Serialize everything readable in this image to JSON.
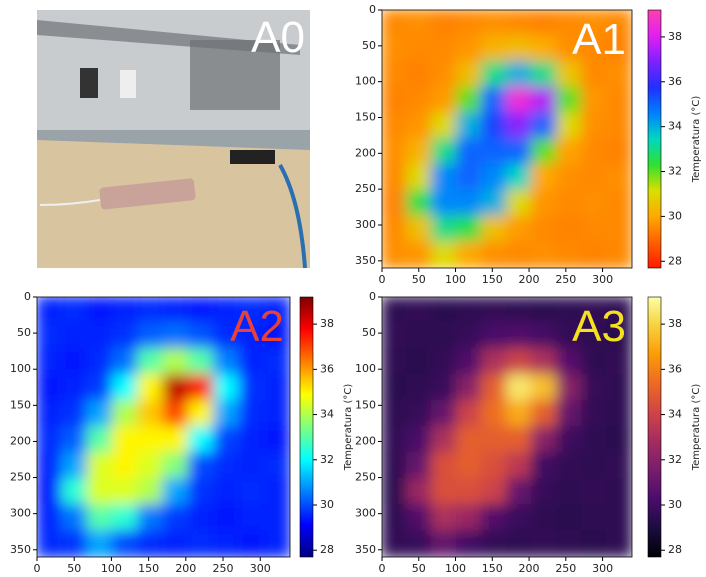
{
  "photo": {
    "label": "A0"
  },
  "chart_data": {
    "type": "heatmap",
    "xlim": [
      0,
      340
    ],
    "ylim": [
      360,
      0
    ],
    "xticks": [
      0,
      50,
      100,
      150,
      200,
      250,
      300
    ],
    "yticks": [
      0,
      50,
      100,
      150,
      200,
      250,
      300,
      350
    ],
    "clim": [
      27.7,
      39.2
    ],
    "cticks": [
      28,
      30,
      32,
      34,
      36,
      38
    ],
    "colorbar_label": "Temperatura (°C)",
    "z": [
      [
        29.5,
        29.6,
        29.4,
        29.5,
        29.6,
        29.5,
        29.4,
        29.5,
        29.6,
        29.5
      ],
      [
        29.6,
        29.5,
        29.5,
        29.7,
        30.2,
        30.4,
        30.1,
        29.6,
        29.5,
        29.4
      ],
      [
        29.5,
        29.4,
        29.6,
        30.4,
        33.0,
        34.0,
        33.0,
        30.6,
        29.5,
        29.6
      ],
      [
        29.4,
        29.5,
        29.8,
        32.0,
        35.0,
        38.5,
        37.5,
        32.0,
        29.7,
        29.5
      ],
      [
        29.5,
        29.7,
        31.0,
        34.0,
        35.5,
        37.0,
        35.0,
        31.0,
        29.6,
        29.5
      ],
      [
        29.6,
        30.2,
        33.0,
        35.0,
        35.0,
        35.0,
        32.0,
        29.9,
        29.5,
        29.4
      ],
      [
        29.5,
        31.0,
        34.5,
        35.0,
        34.5,
        33.5,
        30.0,
        29.6,
        29.5,
        29.6
      ],
      [
        29.4,
        32.5,
        34.5,
        34.5,
        34.0,
        31.0,
        29.7,
        29.5,
        29.6,
        29.5
      ],
      [
        29.5,
        30.5,
        33.0,
        32.5,
        30.5,
        29.8,
        29.5,
        29.4,
        29.5,
        29.5
      ],
      [
        29.6,
        29.7,
        31.0,
        30.0,
        29.6,
        29.5,
        29.6,
        29.5,
        29.4,
        29.5
      ]
    ],
    "panels": [
      {
        "label": "A1",
        "label_color": "#ffffff",
        "colormap": [
          "#ff1a00",
          "#ff6000",
          "#ffa800",
          "#d8e000",
          "#30e030",
          "#00d8c0",
          "#0080ff",
          "#2030ff",
          "#8020ff",
          "#e020f0",
          "#ff40b0"
        ]
      },
      {
        "label": "A2",
        "label_color": "#e8413a",
        "colormap": [
          "#00007f",
          "#0000ff",
          "#007fff",
          "#00ffff",
          "#7fff7f",
          "#ffff00",
          "#ff7f00",
          "#ff0000",
          "#7f0000"
        ]
      },
      {
        "label": "A3",
        "label_color": "#f5e21e",
        "colormap": [
          "#000004",
          "#1b0c41",
          "#4a0c6b",
          "#781c6d",
          "#a52c60",
          "#cf4446",
          "#ed6925",
          "#fb9b06",
          "#f7d13d",
          "#fcffa4"
        ]
      }
    ]
  }
}
